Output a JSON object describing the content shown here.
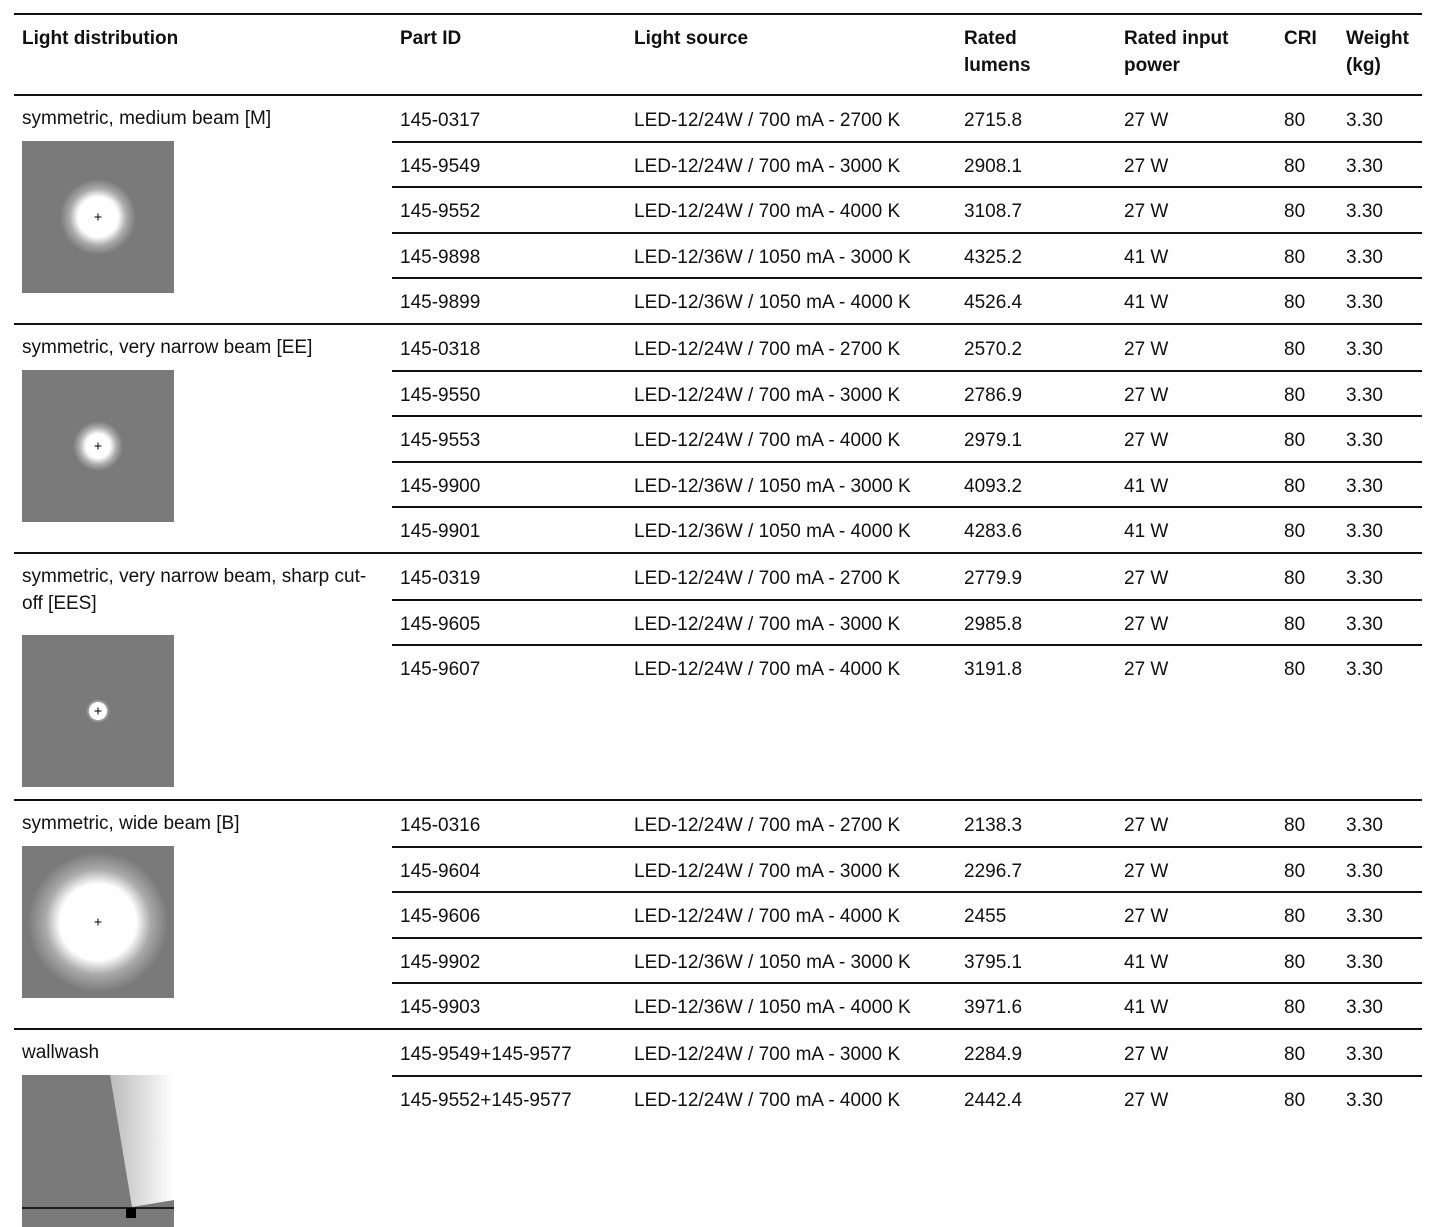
{
  "header": {
    "columns": [
      "Light distribution",
      "Part ID",
      "Light source",
      "Rated lumens",
      "Rated input power",
      "CRI",
      "Weight (kg)"
    ]
  },
  "groups": [
    {
      "distribution": "symmetric, medium beam [M]",
      "rows": [
        [
          "145-0317",
          "LED-12/24W / 700 mA - 2700 K",
          "2715.8",
          "27 W",
          "80",
          "3.30"
        ],
        [
          "145-9549",
          "LED-12/24W / 700 mA - 3000 K",
          "2908.1",
          "27 W",
          "80",
          "3.30"
        ],
        [
          "145-9552",
          "LED-12/24W / 700 mA - 4000 K",
          "3108.7",
          "27 W",
          "80",
          "3.30"
        ],
        [
          "145-9898",
          "LED-12/36W / 1050 mA - 3000 K",
          "4325.2",
          "41 W",
          "80",
          "3.30"
        ],
        [
          "145-9899",
          "LED-12/36W / 1050 mA - 4000 K",
          "4526.4",
          "41 W",
          "80",
          "3.30"
        ]
      ]
    },
    {
      "distribution": "symmetric, very narrow beam [EE]",
      "rows": [
        [
          "145-0318",
          "LED-12/24W / 700 mA - 2700 K",
          "2570.2",
          "27 W",
          "80",
          "3.30"
        ],
        [
          "145-9550",
          "LED-12/24W / 700 mA - 3000 K",
          "2786.9",
          "27 W",
          "80",
          "3.30"
        ],
        [
          "145-9553",
          "LED-12/24W / 700 mA - 4000 K",
          "2979.1",
          "27 W",
          "80",
          "3.30"
        ],
        [
          "145-9900",
          "LED-12/36W / 1050 mA - 3000 K",
          "4093.2",
          "41 W",
          "80",
          "3.30"
        ],
        [
          "145-9901",
          "LED-12/36W / 1050 mA - 4000 K",
          "4283.6",
          "41 W",
          "80",
          "3.30"
        ]
      ]
    },
    {
      "distribution": "symmetric, very narrow beam, sharp cut-off [EES]",
      "rows": [
        [
          "145-0319",
          "LED-12/24W / 700 mA - 2700 K",
          "2779.9",
          "27 W",
          "80",
          "3.30"
        ],
        [
          "145-9605",
          "LED-12/24W / 700 mA - 3000 K",
          "2985.8",
          "27 W",
          "80",
          "3.30"
        ],
        [
          "145-9607",
          "LED-12/24W / 700 mA - 4000 K",
          "3191.8",
          "27 W",
          "80",
          "3.30"
        ]
      ]
    },
    {
      "distribution": "symmetric, wide beam [B]",
      "rows": [
        [
          "145-0316",
          "LED-12/24W / 700 mA - 2700 K",
          "2138.3",
          "27 W",
          "80",
          "3.30"
        ],
        [
          "145-9604",
          "LED-12/24W / 700 mA - 3000 K",
          "2296.7",
          "27 W",
          "80",
          "3.30"
        ],
        [
          "145-9606",
          "LED-12/24W / 700 mA - 4000 K",
          "2455",
          "27 W",
          "80",
          "3.30"
        ],
        [
          "145-9902",
          "LED-12/36W / 1050 mA - 3000 K",
          "3795.1",
          "41 W",
          "80",
          "3.30"
        ],
        [
          "145-9903",
          "LED-12/36W / 1050 mA - 4000 K",
          "3971.6",
          "41 W",
          "80",
          "3.30"
        ]
      ]
    },
    {
      "distribution": "wallwash",
      "rows": [
        [
          "145-9549+145-9577",
          "LED-12/24W / 700 mA - 3000 K",
          "2284.9",
          "27 W",
          "80",
          "3.30"
        ],
        [
          "145-9552+145-9577",
          "LED-12/24W / 700 mA - 4000 K",
          "2442.4",
          "27 W",
          "80",
          "3.30"
        ]
      ]
    }
  ]
}
